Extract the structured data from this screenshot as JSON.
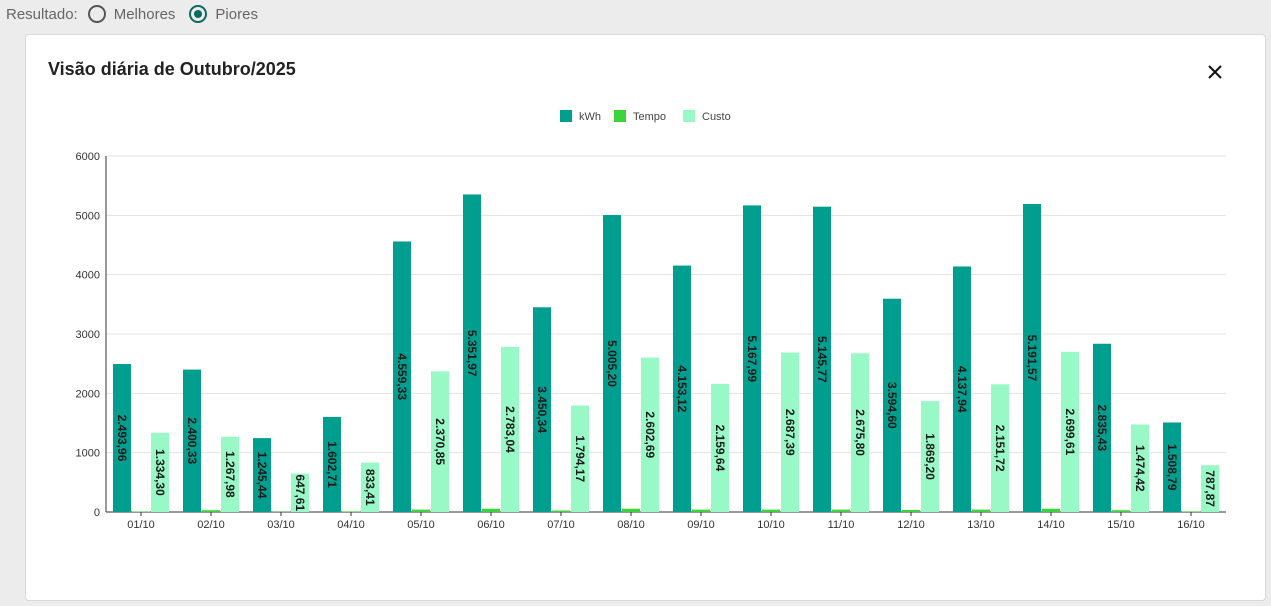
{
  "filter": {
    "label": "Resultado:",
    "options": [
      {
        "label": "Melhores",
        "checked": false
      },
      {
        "label": "Piores",
        "checked": true
      }
    ]
  },
  "card": {
    "title": "Visão diária de Outubro/2025",
    "close_icon": "close-icon"
  },
  "chart_data": {
    "type": "bar",
    "categories": [
      "01/10",
      "02/10",
      "03/10",
      "04/10",
      "05/10",
      "06/10",
      "07/10",
      "08/10",
      "09/10",
      "10/10",
      "11/10",
      "12/10",
      "13/10",
      "14/10",
      "15/10",
      "16/10"
    ],
    "ylim": [
      0,
      6000
    ],
    "yticks": [
      "0",
      "1000",
      "2000",
      "3000",
      "4000",
      "5000",
      "6000"
    ],
    "grid": true,
    "legend": "top-center",
    "series": [
      {
        "name": "kWh",
        "color": "#009e8f",
        "values": [
          2493.96,
          2400.33,
          1245.44,
          1602.71,
          4559.33,
          5351.97,
          3450.34,
          5005.2,
          4153.12,
          5167.99,
          5145.77,
          3594.6,
          4137.94,
          5191.57,
          2835.43,
          1508.79
        ],
        "labels": [
          "2.493,96",
          "2.400,33",
          "1.245,44",
          "1.602,71",
          "4.559,33",
          "5.351,97",
          "3.450,34",
          "5.005,20",
          "4.153,12",
          "5.167,99",
          "5.145,77",
          "3.594,60",
          "4.137,94",
          "5.191,57",
          "2.835,43",
          "1.508,79"
        ]
      },
      {
        "name": "Tempo",
        "color": "#3bd43b",
        "values": [
          8,
          30,
          5,
          10,
          40,
          55,
          25,
          55,
          40,
          40,
          40,
          35,
          40,
          55,
          30,
          10
        ],
        "labels": []
      },
      {
        "name": "Custo",
        "color": "#99f9c6",
        "values": [
          1334.3,
          1267.98,
          647.61,
          833.41,
          2370.85,
          2783.04,
          1794.17,
          2602.69,
          2159.64,
          2687.39,
          2675.8,
          1869.2,
          2151.72,
          2699.61,
          1474.42,
          787.87
        ],
        "labels": [
          "1.334,30",
          "1.267,98",
          "647,61",
          "833,41",
          "2.370,85",
          "2.783,04",
          "1.794,17",
          "2.602,69",
          "2.159,64",
          "2.687,39",
          "2.675,80",
          "1.869,20",
          "2.151,72",
          "2.699,61",
          "1.474,42",
          "787,87"
        ]
      }
    ]
  }
}
